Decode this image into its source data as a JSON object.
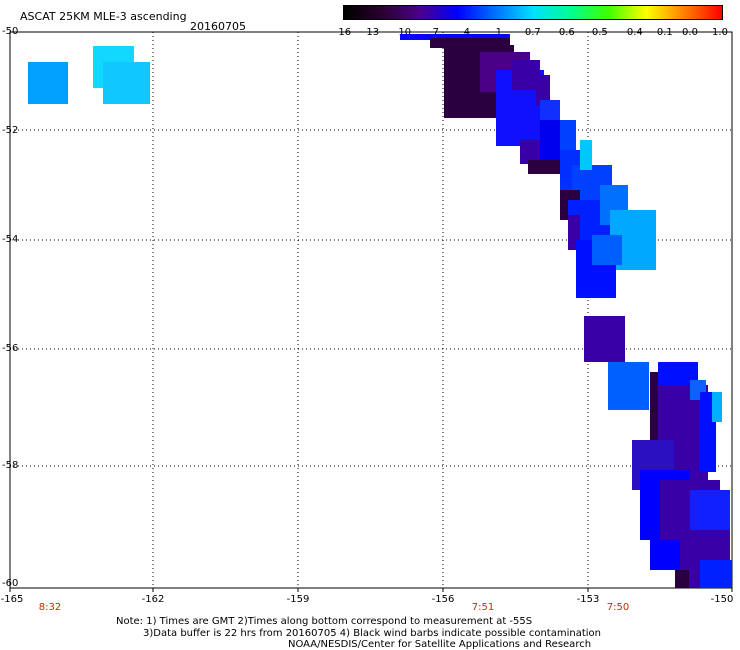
{
  "header": {
    "title": "ASCAT 25KM MLE-3 ascending",
    "date": "20160705"
  },
  "colorbar": {
    "ticks": [
      "-16",
      "-13",
      "-10",
      "-7",
      "-4",
      "-1",
      "-0.7",
      "-0.6",
      "-0.5",
      "-0.4",
      "-0.1",
      "0.0",
      "1.0"
    ],
    "colors": [
      "#000000",
      "#2a0030",
      "#4b0088",
      "#0000ff",
      "#0070ff",
      "#00e0ff",
      "#00ff90",
      "#40ff00",
      "#ffff00",
      "#ff8000",
      "#ff0000"
    ]
  },
  "axes": {
    "y_labels": [
      "-50",
      "-52",
      "-54",
      "-56",
      "-58",
      "-60"
    ],
    "x_labels": [
      "-165",
      "-162",
      "-159",
      "-156",
      "-153",
      "-150"
    ],
    "time_labels": [
      "8:32",
      "7:51",
      "7:50"
    ]
  },
  "notes": {
    "line1": "Note: 1) Times are GMT 2)Times along bottom correspond to measurement at -55S",
    "line2": "3)Data buffer is 22 hrs from 20160705 4) Black wind barbs indicate possible contamination",
    "line3": "NOAA/NESDIS/Center for Satellite Applications and Research"
  }
}
